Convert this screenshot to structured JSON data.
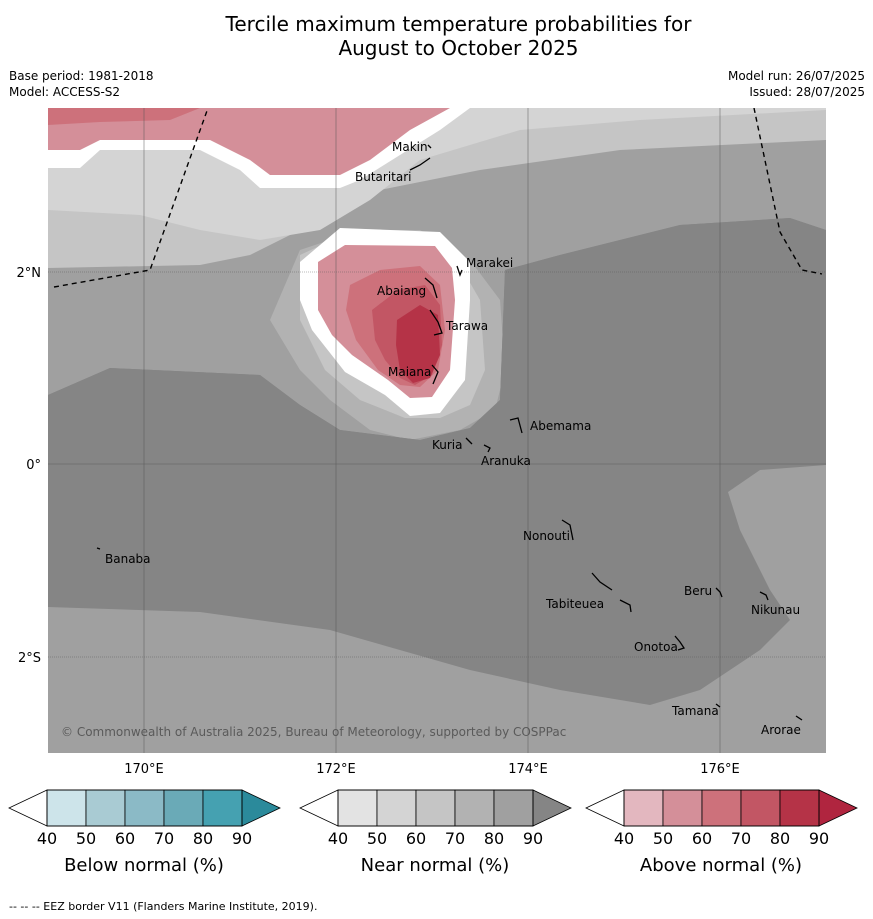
{
  "title_line1": "Tercile maximum temperature probabilities for",
  "title_line2": "August to October 2025",
  "base_period": "Base period: 1981-2018",
  "model": "Model: ACCESS-S2",
  "model_run": "Model run: 26/07/2025",
  "issued": "Issued: 28/07/2025",
  "copyright": "© Commonwealth of Australia 2025, Bureau of Meteorology, supported by COSPPac",
  "footnote": "--  --  -- EEZ border V11 (Flanders Marine Institute, 2019).",
  "lat_labels": [
    "2°N",
    "0°",
    "2°S"
  ],
  "lon_labels": [
    "170°E",
    "172°E",
    "174°E",
    "176°E"
  ],
  "islands": [
    {
      "name": "Makin"
    },
    {
      "name": "Butaritari"
    },
    {
      "name": "Marakei"
    },
    {
      "name": "Abaiang"
    },
    {
      "name": "Tarawa"
    },
    {
      "name": "Maiana"
    },
    {
      "name": "Abemama"
    },
    {
      "name": "Kuria"
    },
    {
      "name": "Aranuka"
    },
    {
      "name": "Banaba"
    },
    {
      "name": "Nonouti"
    },
    {
      "name": "Tabiteuea"
    },
    {
      "name": "Beru"
    },
    {
      "name": "Nikunau"
    },
    {
      "name": "Onotoa"
    },
    {
      "name": "Tamana"
    },
    {
      "name": "Arorae"
    }
  ],
  "colorbars": [
    {
      "title": "Below normal (%)",
      "ticks": [
        "40",
        "50",
        "60",
        "70",
        "80",
        "90"
      ],
      "colors": [
        "#cde4ea",
        "#a9cbd3",
        "#8bbac6",
        "#6aaab7",
        "#45a1b1",
        "#2b8a9b"
      ]
    },
    {
      "title": "Near normal (%)",
      "ticks": [
        "40",
        "50",
        "60",
        "70",
        "80",
        "90"
      ],
      "colors": [
        "#e3e3e3",
        "#d4d4d4",
        "#c5c5c5",
        "#b2b2b2",
        "#a0a0a0",
        "#858585"
      ]
    },
    {
      "title": "Above normal (%)",
      "ticks": [
        "40",
        "50",
        "60",
        "70",
        "80",
        "90"
      ],
      "colors": [
        "#e3b7bf",
        "#d48f99",
        "#cd717b",
        "#c25664",
        "#b53347",
        "#b0253f"
      ]
    }
  ]
}
